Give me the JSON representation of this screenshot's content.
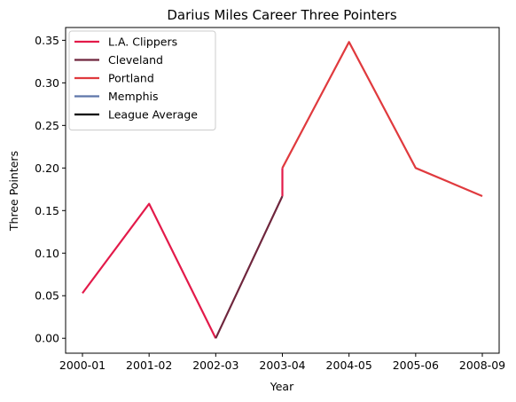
{
  "chart_data": {
    "type": "line",
    "title": "Darius Miles Career Three Pointers",
    "xlabel": "Year",
    "ylabel": "Three Pointers",
    "categories": [
      "2000-01",
      "2001-02",
      "2002-03",
      "2003-04",
      "2004-05",
      "2005-06",
      "2008-09"
    ],
    "ylim": [
      -0.0175,
      0.365
    ],
    "yticks": [
      0.0,
      0.05,
      0.1,
      0.15,
      0.2,
      0.25,
      0.3,
      0.35
    ],
    "ytick_labels": [
      "0.00",
      "0.05",
      "0.10",
      "0.15",
      "0.20",
      "0.25",
      "0.30",
      "0.35"
    ],
    "grid": false,
    "legend_position": "top-left",
    "series": [
      {
        "name": "L.A. Clippers",
        "color": "#E31A4A",
        "points": [
          {
            "x": "2000-01",
            "y": 0.053
          },
          {
            "x": "2001-02",
            "y": 0.158
          },
          {
            "x": "2002-03",
            "y": 0.0
          }
        ]
      },
      {
        "name": "Cleveland",
        "color": "#6F263D",
        "points": [
          {
            "x": "2002-03",
            "y": 0.0
          },
          {
            "x": "2003-04",
            "y": 0.167
          }
        ]
      },
      {
        "name": "Portland",
        "color": "#E03A3E",
        "points": [
          {
            "x": "2003-04",
            "y": 0.2
          },
          {
            "x": "2004-05",
            "y": 0.348
          },
          {
            "x": "2005-06",
            "y": 0.2
          },
          {
            "x": "2008-09",
            "y": 0.167
          }
        ]
      },
      {
        "name": "Memphis",
        "color": "#5D76A9",
        "points": []
      },
      {
        "name": "League Average",
        "color": "#000000",
        "points": []
      }
    ],
    "connectors": [
      {
        "x": "2003-04",
        "y_from": 0.167,
        "y_to": 0.2,
        "color": "#E31A4A"
      }
    ]
  }
}
